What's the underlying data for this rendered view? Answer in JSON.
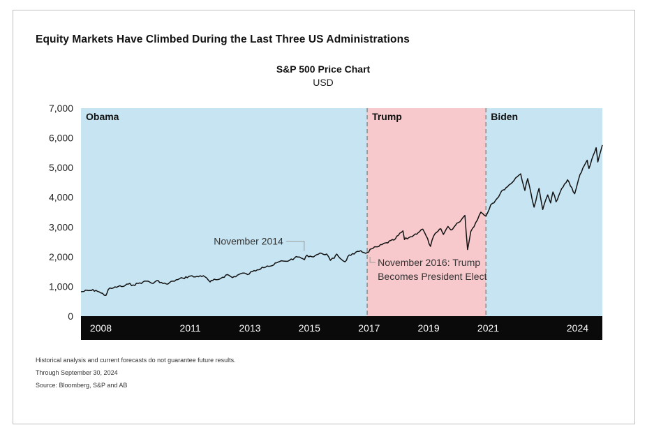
{
  "headline": "Equity Markets Have Climbed During the Last Three US Administrations",
  "footnotes": [
    "Historical analysis and current forecasts do not guarantee future results.",
    "Through September 30, 2024",
    "Source: Bloomberg, S&P and AB"
  ],
  "chart_data": {
    "type": "line",
    "title": "S&P 500 Price Chart",
    "subtitle": "USD",
    "ylim": [
      0,
      7000
    ],
    "yticks": [
      0,
      1000,
      2000,
      3000,
      4000,
      5000,
      6000,
      7000
    ],
    "ytick_labels": [
      "0",
      "1,000",
      "2,000",
      "3,000",
      "4,000",
      "5,000",
      "6,000",
      "7,000"
    ],
    "xlim": [
      "2007-04-01",
      "2024-09-30"
    ],
    "xtick_labels": [
      "2008",
      "2011",
      "2013",
      "2015",
      "2017",
      "2019",
      "2021",
      "2024"
    ],
    "xtick_dates": [
      "2007-12-01",
      "2010-12-01",
      "2012-12-01",
      "2014-12-01",
      "2016-12-01",
      "2018-12-01",
      "2020-12-01",
      "2023-12-01"
    ],
    "periods": [
      {
        "name": "Obama",
        "start": "2007-04-01",
        "end": "2016-11-08",
        "color": "#c7e4f2"
      },
      {
        "name": "Trump",
        "start": "2016-11-08",
        "end": "2020-11-03",
        "color": "#f8c9cc"
      },
      {
        "name": "Biden",
        "start": "2020-11-03",
        "end": "2024-09-30",
        "color": "#c7e4f2"
      }
    ],
    "annotations": [
      {
        "text": "November 2014",
        "date": "2014-11-01",
        "value": 2050
      },
      {
        "text_lines": [
          "November 2016: Trump",
          "Becomes President Elect"
        ],
        "date": "2016-11-08",
        "value": 2140
      }
    ],
    "series": [
      {
        "values": [
          [
            "2007-04-01",
            820
          ],
          [
            "2007-07-01",
            860
          ],
          [
            "2007-10-01",
            870
          ],
          [
            "2007-12-01",
            780
          ],
          [
            "2008-02-01",
            700
          ],
          [
            "2008-03-01",
            900
          ],
          [
            "2008-05-01",
            950
          ],
          [
            "2008-07-01",
            1000
          ],
          [
            "2008-09-01",
            1000
          ],
          [
            "2008-11-01",
            1080
          ],
          [
            "2009-01-01",
            1050
          ],
          [
            "2009-03-01",
            1100
          ],
          [
            "2009-05-01",
            1150
          ],
          [
            "2009-07-01",
            1180
          ],
          [
            "2009-09-01",
            1100
          ],
          [
            "2009-11-01",
            1200
          ],
          [
            "2010-01-01",
            1100
          ],
          [
            "2010-03-01",
            1080
          ],
          [
            "2010-05-01",
            1180
          ],
          [
            "2010-07-01",
            1230
          ],
          [
            "2010-09-01",
            1280
          ],
          [
            "2010-12-01",
            1350
          ],
          [
            "2011-02-01",
            1320
          ],
          [
            "2011-04-01",
            1360
          ],
          [
            "2011-06-01",
            1320
          ],
          [
            "2011-08-01",
            1150
          ],
          [
            "2011-09-01",
            1200
          ],
          [
            "2011-11-01",
            1230
          ],
          [
            "2012-01-01",
            1310
          ],
          [
            "2012-03-01",
            1400
          ],
          [
            "2012-05-01",
            1300
          ],
          [
            "2012-07-01",
            1380
          ],
          [
            "2012-09-01",
            1450
          ],
          [
            "2012-11-01",
            1400
          ],
          [
            "2013-01-01",
            1500
          ],
          [
            "2013-03-01",
            1560
          ],
          [
            "2013-05-01",
            1650
          ],
          [
            "2013-07-01",
            1690
          ],
          [
            "2013-09-01",
            1700
          ],
          [
            "2013-12-01",
            1840
          ],
          [
            "2014-02-01",
            1850
          ],
          [
            "2014-04-01",
            1880
          ],
          [
            "2014-06-01",
            1960
          ],
          [
            "2014-08-01",
            1990
          ],
          [
            "2014-10-01",
            1900
          ],
          [
            "2014-11-01",
            2050
          ],
          [
            "2015-01-01",
            2000
          ],
          [
            "2015-03-01",
            2070
          ],
          [
            "2015-05-01",
            2110
          ],
          [
            "2015-07-01",
            2090
          ],
          [
            "2015-08-15",
            1880
          ],
          [
            "2015-10-01",
            1950
          ],
          [
            "2015-11-01",
            2090
          ],
          [
            "2016-01-01",
            1900
          ],
          [
            "2016-02-10",
            1830
          ],
          [
            "2016-04-01",
            2060
          ],
          [
            "2016-06-01",
            2090
          ],
          [
            "2016-08-01",
            2180
          ],
          [
            "2016-10-01",
            2140
          ],
          [
            "2016-11-08",
            2140
          ],
          [
            "2017-01-01",
            2270
          ],
          [
            "2017-04-01",
            2350
          ],
          [
            "2017-07-01",
            2470
          ],
          [
            "2017-10-01",
            2560
          ],
          [
            "2018-01-20",
            2870
          ],
          [
            "2018-02-08",
            2580
          ],
          [
            "2018-04-01",
            2640
          ],
          [
            "2018-06-01",
            2720
          ],
          [
            "2018-09-20",
            2930
          ],
          [
            "2018-11-01",
            2700
          ],
          [
            "2018-12-24",
            2350
          ],
          [
            "2019-02-01",
            2700
          ],
          [
            "2019-04-30",
            2940
          ],
          [
            "2019-06-01",
            2750
          ],
          [
            "2019-07-26",
            3020
          ],
          [
            "2019-09-01",
            2900
          ],
          [
            "2019-12-01",
            3150
          ],
          [
            "2020-02-19",
            3390
          ],
          [
            "2020-03-23",
            2240
          ],
          [
            "2020-05-01",
            2850
          ],
          [
            "2020-07-01",
            3150
          ],
          [
            "2020-09-01",
            3500
          ],
          [
            "2020-11-03",
            3370
          ],
          [
            "2021-01-01",
            3750
          ],
          [
            "2021-03-01",
            3900
          ],
          [
            "2021-06-01",
            4250
          ],
          [
            "2021-09-01",
            4450
          ],
          [
            "2021-11-01",
            4650
          ],
          [
            "2022-01-03",
            4790
          ],
          [
            "2022-02-23",
            4230
          ],
          [
            "2022-03-29",
            4630
          ],
          [
            "2022-06-16",
            3670
          ],
          [
            "2022-08-16",
            4300
          ],
          [
            "2022-09-30",
            3590
          ],
          [
            "2022-11-30",
            4080
          ],
          [
            "2023-01-05",
            3810
          ],
          [
            "2023-02-02",
            4180
          ],
          [
            "2023-03-13",
            3850
          ],
          [
            "2023-05-01",
            4170
          ],
          [
            "2023-07-31",
            4590
          ],
          [
            "2023-10-27",
            4120
          ],
          [
            "2023-12-31",
            4770
          ],
          [
            "2024-03-28",
            5250
          ],
          [
            "2024-04-19",
            4970
          ],
          [
            "2024-07-16",
            5670
          ],
          [
            "2024-08-05",
            5190
          ],
          [
            "2024-09-30",
            5760
          ]
        ]
      }
    ]
  }
}
